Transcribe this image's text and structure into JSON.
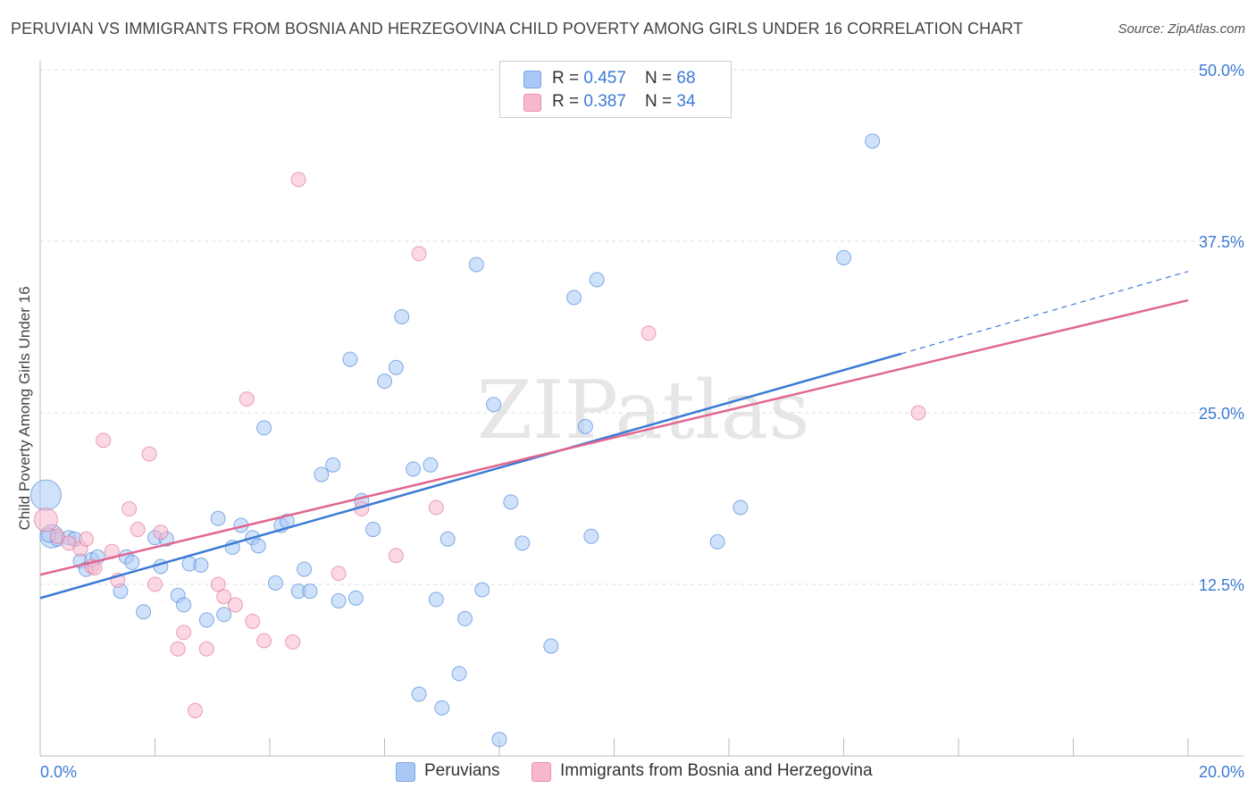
{
  "title": "PERUVIAN VS IMMIGRANTS FROM BOSNIA AND HERZEGOVINA CHILD POVERTY AMONG GIRLS UNDER 16 CORRELATION CHART",
  "source": "Source: ZipAtlas.com",
  "watermark": "ZIPatlas",
  "legend_top": [
    {
      "r_label": "R = ",
      "r": "0.457",
      "n_label": "N = ",
      "n": "68",
      "color": "#a9c8f5"
    },
    {
      "r_label": "R = ",
      "r": "0.387",
      "n_label": "N = ",
      "n": "34",
      "color": "#f7b8cc"
    }
  ],
  "legend_bottom": [
    "Peruvians",
    "Immigrants from Bosnia and Herzegovina"
  ],
  "chart_data": {
    "type": "scatter",
    "title": "PERUVIAN VS IMMIGRANTS FROM BOSNIA AND HERZEGOVINA CHILD POVERTY AMONG GIRLS UNDER 16 CORRELATION CHART",
    "xlabel": "",
    "ylabel": "Child Poverty Among Girls Under 16",
    "xlim": [
      0,
      20
    ],
    "ylim": [
      0,
      50
    ],
    "x_tick_labels": [
      "0.0%",
      "20.0%"
    ],
    "y_ticks": [
      12.5,
      25.0,
      37.5,
      50.0
    ],
    "y_tick_labels": [
      "12.5%",
      "25.0%",
      "37.5%",
      "50.0%"
    ],
    "grid": "horizontal dashed",
    "legend": "top-center",
    "series": [
      {
        "name": "Peruvians",
        "color": "#3a7bd5",
        "fill": "#a9c8f5",
        "r": 0.457,
        "n": 68,
        "trend": {
          "x0": 0,
          "y0": 11.5,
          "x1": 15,
          "y1": 29.3,
          "dashed_to_x": 20,
          "dashed_to_y": 35.3
        },
        "points": [
          [
            0.1,
            19.0
          ],
          [
            0.2,
            16.0
          ],
          [
            0.3,
            15.8
          ],
          [
            0.5,
            15.9
          ],
          [
            0.6,
            15.8
          ],
          [
            0.7,
            14.2
          ],
          [
            0.8,
            13.6
          ],
          [
            0.9,
            14.3
          ],
          [
            1.0,
            14.5
          ],
          [
            1.4,
            12.0
          ],
          [
            1.5,
            14.5
          ],
          [
            1.6,
            14.1
          ],
          [
            1.8,
            10.5
          ],
          [
            2.0,
            15.9
          ],
          [
            2.1,
            13.8
          ],
          [
            2.2,
            15.8
          ],
          [
            2.4,
            11.7
          ],
          [
            2.5,
            11.0
          ],
          [
            2.6,
            14.0
          ],
          [
            2.8,
            13.9
          ],
          [
            2.9,
            9.9
          ],
          [
            3.1,
            17.3
          ],
          [
            3.2,
            10.3
          ],
          [
            3.35,
            15.2
          ],
          [
            3.5,
            16.8
          ],
          [
            3.7,
            15.9
          ],
          [
            3.8,
            15.3
          ],
          [
            3.9,
            23.9
          ],
          [
            4.1,
            12.6
          ],
          [
            4.2,
            16.8
          ],
          [
            4.3,
            17.1
          ],
          [
            4.5,
            12.0
          ],
          [
            4.6,
            13.6
          ],
          [
            4.7,
            12.0
          ],
          [
            4.9,
            20.5
          ],
          [
            5.1,
            21.2
          ],
          [
            5.2,
            11.3
          ],
          [
            5.4,
            28.9
          ],
          [
            5.5,
            11.5
          ],
          [
            5.6,
            18.6
          ],
          [
            5.8,
            16.5
          ],
          [
            6.0,
            27.3
          ],
          [
            6.2,
            28.3
          ],
          [
            6.3,
            32.0
          ],
          [
            6.5,
            20.9
          ],
          [
            6.6,
            4.5
          ],
          [
            6.8,
            21.2
          ],
          [
            6.9,
            11.4
          ],
          [
            7.0,
            3.5
          ],
          [
            7.1,
            15.8
          ],
          [
            7.3,
            6.0
          ],
          [
            7.4,
            10.0
          ],
          [
            7.6,
            35.8
          ],
          [
            7.7,
            12.1
          ],
          [
            7.9,
            25.6
          ],
          [
            8.0,
            1.2
          ],
          [
            8.2,
            18.5
          ],
          [
            8.4,
            15.5
          ],
          [
            8.9,
            8.0
          ],
          [
            9.3,
            33.4
          ],
          [
            9.5,
            24.0
          ],
          [
            9.6,
            16.0
          ],
          [
            9.7,
            34.7
          ],
          [
            11.8,
            15.6
          ],
          [
            12.2,
            18.1
          ],
          [
            14.0,
            36.3
          ],
          [
            14.5,
            44.8
          ],
          [
            0.15,
            16.1
          ]
        ],
        "large_points": [
          [
            0.1,
            19.0
          ],
          [
            0.2,
            16.0
          ]
        ]
      },
      {
        "name": "Immigrants from Bosnia and Herzegovina",
        "color": "#e0678f",
        "fill": "#f7b8cc",
        "r": 0.387,
        "n": 34,
        "trend": {
          "x0": 0,
          "y0": 13.2,
          "x1": 20,
          "y1": 33.2
        },
        "points": [
          [
            0.1,
            17.2
          ],
          [
            0.3,
            16.0
          ],
          [
            0.5,
            15.5
          ],
          [
            0.7,
            15.1
          ],
          [
            0.8,
            15.8
          ],
          [
            0.9,
            13.8
          ],
          [
            1.1,
            23.0
          ],
          [
            1.25,
            14.9
          ],
          [
            1.35,
            12.8
          ],
          [
            1.55,
            18.0
          ],
          [
            1.7,
            16.5
          ],
          [
            1.9,
            22.0
          ],
          [
            2.0,
            12.5
          ],
          [
            2.1,
            16.3
          ],
          [
            2.4,
            7.8
          ],
          [
            2.5,
            9.0
          ],
          [
            2.7,
            3.3
          ],
          [
            2.9,
            7.8
          ],
          [
            3.1,
            12.5
          ],
          [
            3.2,
            11.6
          ],
          [
            3.4,
            11.0
          ],
          [
            3.6,
            26.0
          ],
          [
            3.7,
            9.8
          ],
          [
            3.9,
            8.4
          ],
          [
            4.4,
            8.3
          ],
          [
            4.5,
            42.0
          ],
          [
            5.2,
            13.3
          ],
          [
            5.6,
            18.0
          ],
          [
            6.2,
            14.6
          ],
          [
            6.6,
            36.6
          ],
          [
            6.9,
            18.1
          ],
          [
            10.6,
            30.8
          ],
          [
            15.3,
            25.0
          ],
          [
            0.95,
            13.7
          ]
        ],
        "large_points": [
          [
            0.1,
            17.2
          ]
        ]
      }
    ]
  }
}
